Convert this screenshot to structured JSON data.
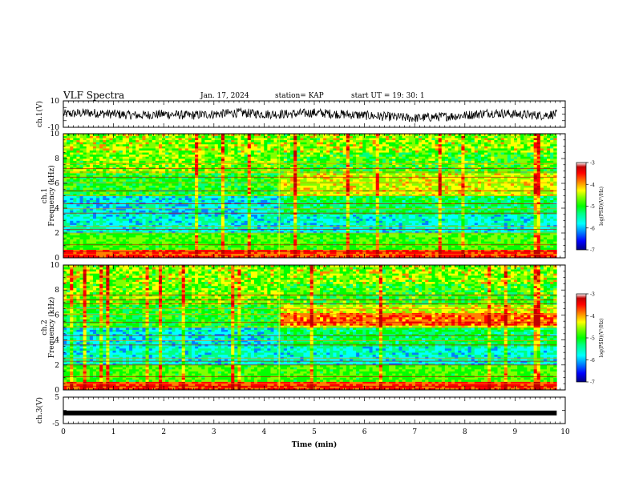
{
  "header": {
    "title": "VLF Spectra",
    "date": "Jan. 17, 2024",
    "station": "station= KAP",
    "start": "start UT =  19: 30: 1"
  },
  "colors": {
    "colormap": [
      "#000080",
      "#0000ff",
      "#0080ff",
      "#00ffff",
      "#00ff80",
      "#00ff00",
      "#80ff00",
      "#ffff00",
      "#ff8000",
      "#ff0000",
      "#c00000",
      "#ffffff"
    ]
  },
  "chart_data": [
    {
      "id": "ch1",
      "type": "line",
      "ylabel": "ch.1(V)",
      "ylim": [
        -10,
        10
      ],
      "yticks": [
        "10",
        "-10"
      ],
      "xlim": [
        0,
        10
      ],
      "x_end": 9.83,
      "series": [
        {
          "style": "noisy trace",
          "x": [
            0,
            0.5,
            1,
            1.5,
            2,
            2.5,
            3,
            3.5,
            4,
            4.5,
            5,
            5.5,
            6,
            6.5,
            7,
            7.5,
            8,
            8.5,
            9,
            9.5,
            9.83
          ],
          "y": [
            0,
            1,
            0,
            -1,
            0,
            -1,
            0,
            1,
            0,
            0,
            1,
            0,
            -1,
            -2,
            -3,
            -2,
            -1,
            1,
            0,
            -1,
            0
          ]
        }
      ]
    },
    {
      "id": "ch2-spec",
      "type": "heatmap",
      "title": "ch.1",
      "ylabel": "Frequency (kHz)",
      "ylim": [
        0,
        10
      ],
      "yticks": [
        "0",
        "2",
        "4",
        "6",
        "8",
        "10"
      ],
      "xlim": [
        0,
        10
      ],
      "x_end": 9.83,
      "colorbar": {
        "label": "log(PSD)(V²/Hz)",
        "range": [
          -7,
          -3
        ],
        "ticks": [
          "-3",
          "-4",
          "-5",
          "-6",
          "-7"
        ]
      },
      "regime_change_min": 4.3
    },
    {
      "id": "ch3-spec",
      "type": "heatmap",
      "title": "ch.2",
      "ylabel": "Frequency (kHz)",
      "ylim": [
        0,
        10
      ],
      "yticks": [
        "0",
        "2",
        "4",
        "6",
        "8",
        "10"
      ],
      "xlim": [
        0,
        10
      ],
      "x_end": 9.83,
      "colorbar": {
        "label": "log(PSD)(V²/Hz)",
        "range": [
          -7,
          -3
        ],
        "ticks": [
          "-3",
          "-4",
          "-5",
          "-6",
          "-7"
        ]
      },
      "regime_change_min": 4.3
    },
    {
      "id": "ch3",
      "type": "line",
      "ylabel": "ch.3(V)",
      "ylim": [
        -5,
        5
      ],
      "yticks": [
        "5",
        "-5"
      ],
      "xlim": [
        0,
        10
      ],
      "x_end": 9.83,
      "series": [
        {
          "style": "thick flat band",
          "x": [
            0,
            9.83
          ],
          "y": [
            -1,
            -1
          ]
        }
      ]
    }
  ],
  "x_axis": {
    "label": "Time (min)",
    "ticks": [
      "0",
      "1",
      "2",
      "3",
      "4",
      "5",
      "6",
      "7",
      "8",
      "9",
      "10"
    ]
  }
}
